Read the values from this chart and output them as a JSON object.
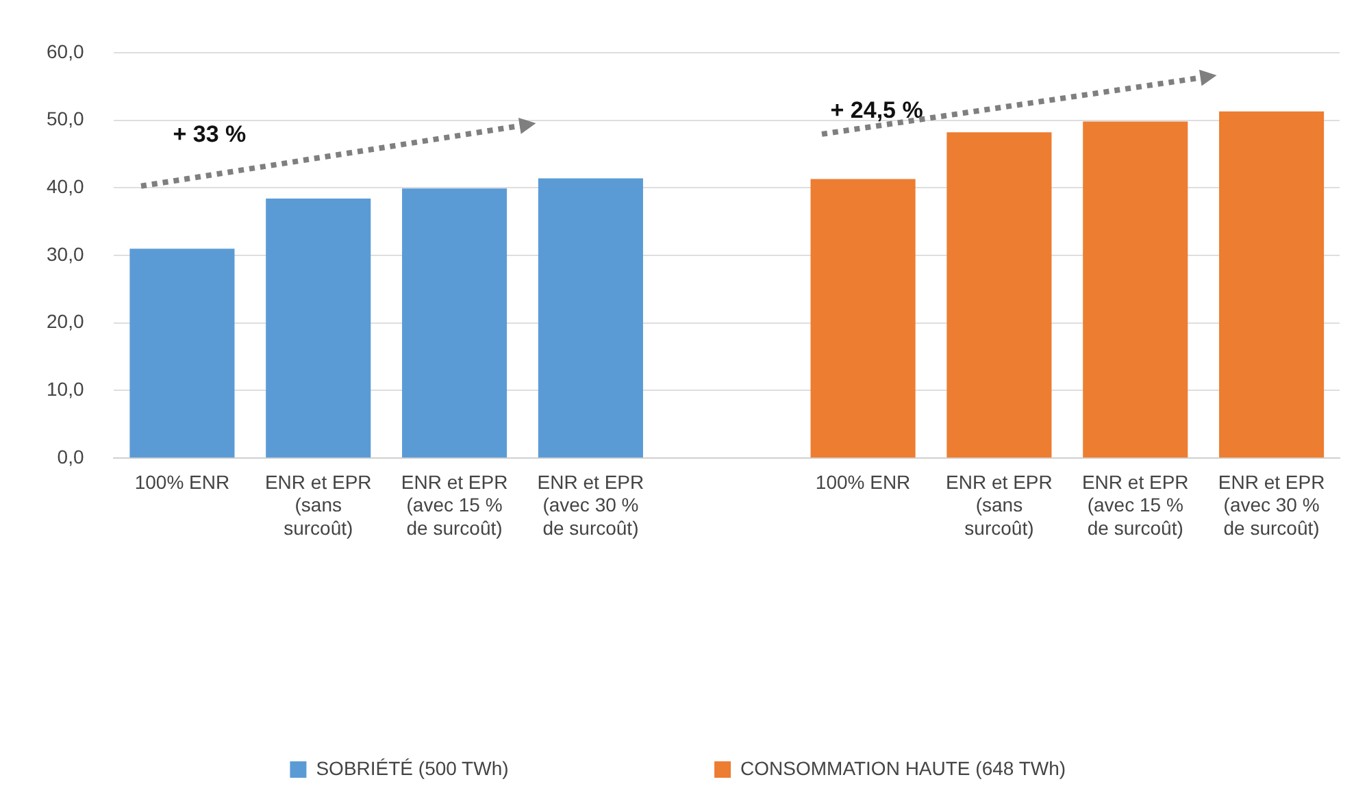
{
  "chart_data": {
    "type": "bar",
    "categories": [
      "100% ENR",
      "ENR et EPR\n(sans\nsurcoût)",
      "ENR et EPR\n(avec 15 %\nde surcoût)",
      "ENR et EPR\n(avec 30 %\nde surcoût)",
      null,
      "100% ENR",
      "ENR et EPR\n(sans\nsurcoût)",
      "ENR et EPR\n(avec 15 %\nde surcoût)",
      "ENR et EPR\n(avec 30 %\nde surcoût)"
    ],
    "series": [
      {
        "name": "SOBRIÉTÉ (500 TWh)",
        "color": "#5b9bd5",
        "values": [
          31.0,
          38.4,
          39.9,
          41.4,
          null,
          null,
          null,
          null,
          null
        ]
      },
      {
        "name": "CONSOMMATION HAUTE (648 TWh)",
        "color": "#ed7d31",
        "values": [
          null,
          null,
          null,
          null,
          null,
          41.3,
          48.2,
          49.8,
          51.3
        ]
      }
    ],
    "ylim": [
      0,
      60
    ],
    "yticks": [
      {
        "value": 0,
        "label": "0,0"
      },
      {
        "value": 10,
        "label": "10,0"
      },
      {
        "value": 20,
        "label": "20,0"
      },
      {
        "value": 30,
        "label": "30,0"
      },
      {
        "value": 40,
        "label": "40,0"
      },
      {
        "value": 50,
        "label": "50,0"
      },
      {
        "value": 60,
        "label": "60,0"
      }
    ],
    "grid": "y",
    "legend": "bottom",
    "annotations": [
      "+ 33 %",
      "+ 24,5 %"
    ]
  }
}
